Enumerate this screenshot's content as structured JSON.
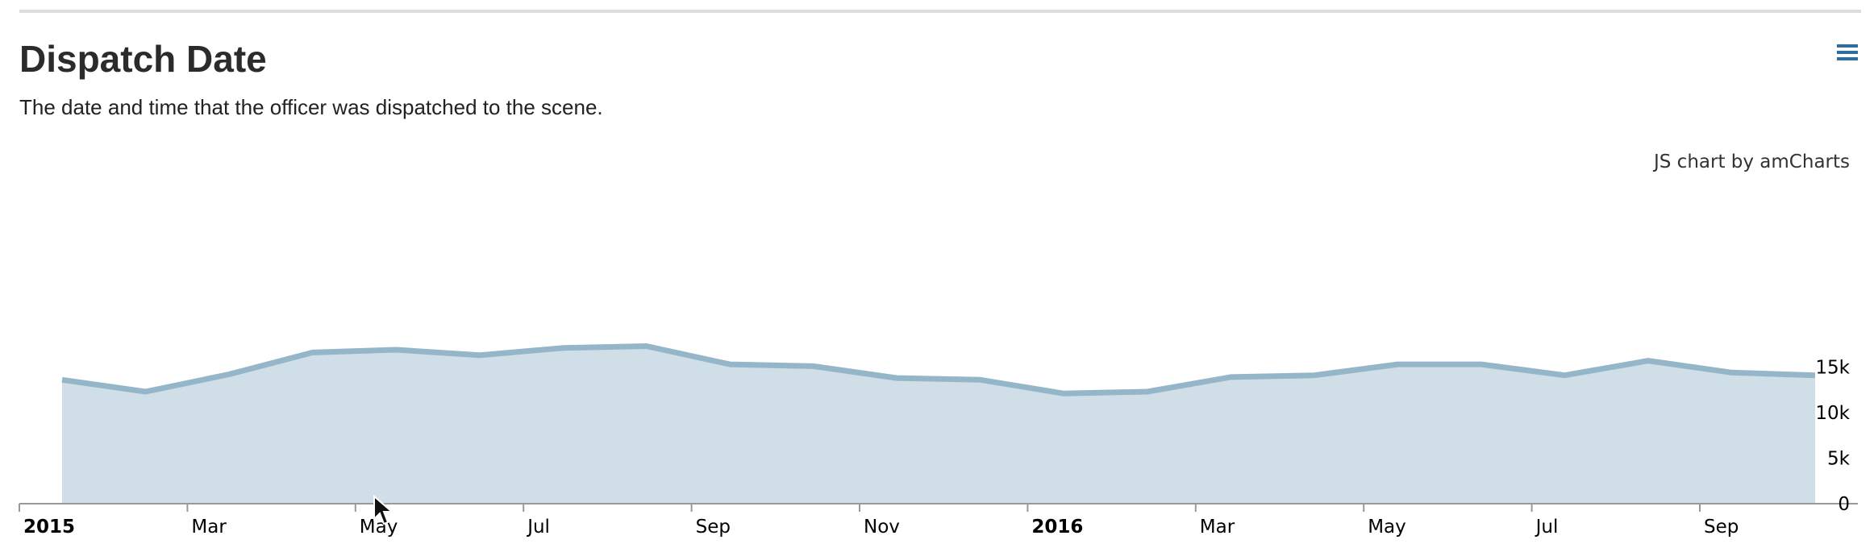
{
  "header": {
    "title": "Dispatch Date",
    "subtitle": "The date and time that the officer was dispatched to the scene.",
    "menu_icon": "hamburger-menu-icon"
  },
  "credit": "JS chart by amCharts",
  "colors": {
    "line": "#95b6c9",
    "fill": "#d0dee8",
    "axis": "#999999",
    "menu": "#2a6ea6"
  },
  "chart_data": {
    "type": "area",
    "x": [
      "2015-01",
      "2015-02",
      "2015-03",
      "2015-04",
      "2015-05",
      "2015-06",
      "2015-07",
      "2015-08",
      "2015-09",
      "2015-10",
      "2015-11",
      "2015-12",
      "2016-01",
      "2016-02",
      "2016-03",
      "2016-04",
      "2016-05",
      "2016-06",
      "2016-07",
      "2016-08",
      "2016-09",
      "2016-10"
    ],
    "values": [
      13600,
      12300,
      14200,
      16600,
      16900,
      16300,
      17100,
      17300,
      15300,
      15100,
      13800,
      13600,
      12100,
      12300,
      13900,
      14100,
      15300,
      15300,
      14100,
      15700,
      14400,
      14100
    ],
    "x_tick_labels": [
      {
        "label": "2015",
        "bold": true,
        "date": "2015-01"
      },
      {
        "label": "Mar",
        "bold": false,
        "date": "2015-03"
      },
      {
        "label": "May",
        "bold": false,
        "date": "2015-05"
      },
      {
        "label": "Jul",
        "bold": false,
        "date": "2015-07"
      },
      {
        "label": "Sep",
        "bold": false,
        "date": "2015-09"
      },
      {
        "label": "Nov",
        "bold": false,
        "date": "2015-11"
      },
      {
        "label": "2016",
        "bold": true,
        "date": "2016-01"
      },
      {
        "label": "Mar",
        "bold": false,
        "date": "2016-03"
      },
      {
        "label": "May",
        "bold": false,
        "date": "2016-05"
      },
      {
        "label": "Jul",
        "bold": false,
        "date": "2016-07"
      },
      {
        "label": "Sep",
        "bold": false,
        "date": "2016-09"
      }
    ],
    "y_ticks": [
      {
        "value": 0,
        "label": "0"
      },
      {
        "value": 5000,
        "label": "5k"
      },
      {
        "value": 10000,
        "label": "10k"
      },
      {
        "value": 15000,
        "label": "15k"
      }
    ],
    "ylim": [
      0,
      16500
    ],
    "y_axis_position": "right",
    "grid": false,
    "legend": "none"
  }
}
